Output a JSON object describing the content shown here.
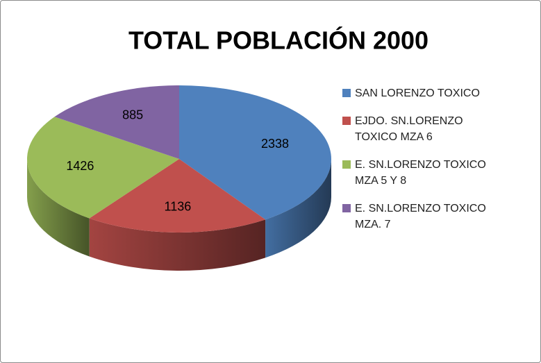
{
  "chart_data": {
    "type": "pie3d",
    "title": "TOTAL POBLACIÓN 2000",
    "categories": [
      "SAN LORENZO TOXICO",
      "EJDO. SN.LORENZO TOXICO MZA 6",
      "E. SN.LORENZO TOXICO MZA 5 Y 8",
      "E. SN.LORENZO TOXICO MZA. 7"
    ],
    "values": [
      2338,
      1136,
      1426,
      885
    ],
    "colors": [
      "#4f81bd",
      "#c0504d",
      "#9bbb59",
      "#8064a2"
    ],
    "legend": "right"
  }
}
